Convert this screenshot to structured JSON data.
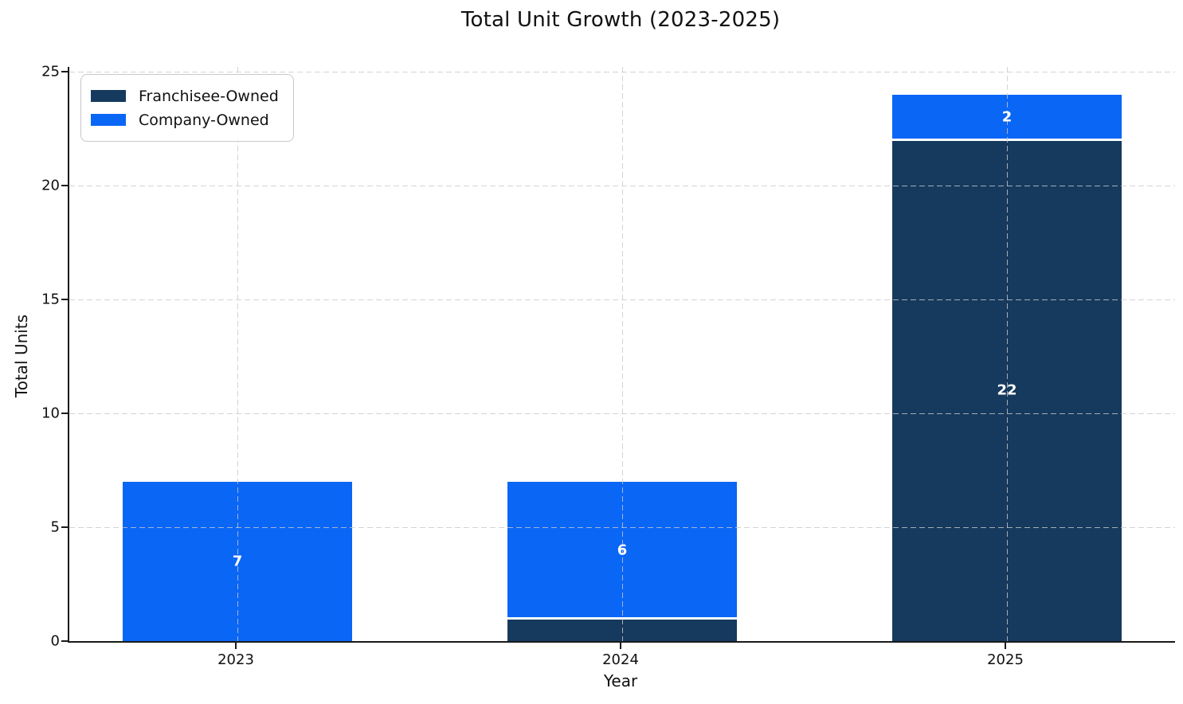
{
  "title": "Total Unit Growth (2023-2025)",
  "axes": {
    "xlabel": "Year",
    "ylabel": "Total Units",
    "ytick_labels": [
      "0",
      "5",
      "10",
      "15",
      "20",
      "25"
    ],
    "ytick_values": [
      0,
      5,
      10,
      15,
      20,
      25
    ]
  },
  "legend": {
    "items": [
      {
        "label": "Franchisee-Owned",
        "color": "#163a5e"
      },
      {
        "label": "Company-Owned",
        "color": "#0a66f5"
      }
    ]
  },
  "chart_data": {
    "type": "bar",
    "stacked": true,
    "title": "Total Unit Growth (2023-2025)",
    "xlabel": "Year",
    "ylabel": "Total Units",
    "categories": [
      "2023",
      "2024",
      "2025"
    ],
    "series": [
      {
        "name": "Franchisee-Owned",
        "color": "#163a5e",
        "values": [
          0,
          1,
          22
        ],
        "labels": [
          "",
          "",
          "22"
        ]
      },
      {
        "name": "Company-Owned",
        "color": "#0a66f5",
        "values": [
          7,
          6,
          2
        ],
        "labels": [
          "7",
          "6",
          "2"
        ]
      }
    ],
    "totals": [
      7,
      7,
      24
    ],
    "ylim": [
      0,
      25
    ],
    "grid": true,
    "grid_style": "dashed",
    "legend_position": "upper left",
    "bar_label_color": "#ffffff"
  }
}
